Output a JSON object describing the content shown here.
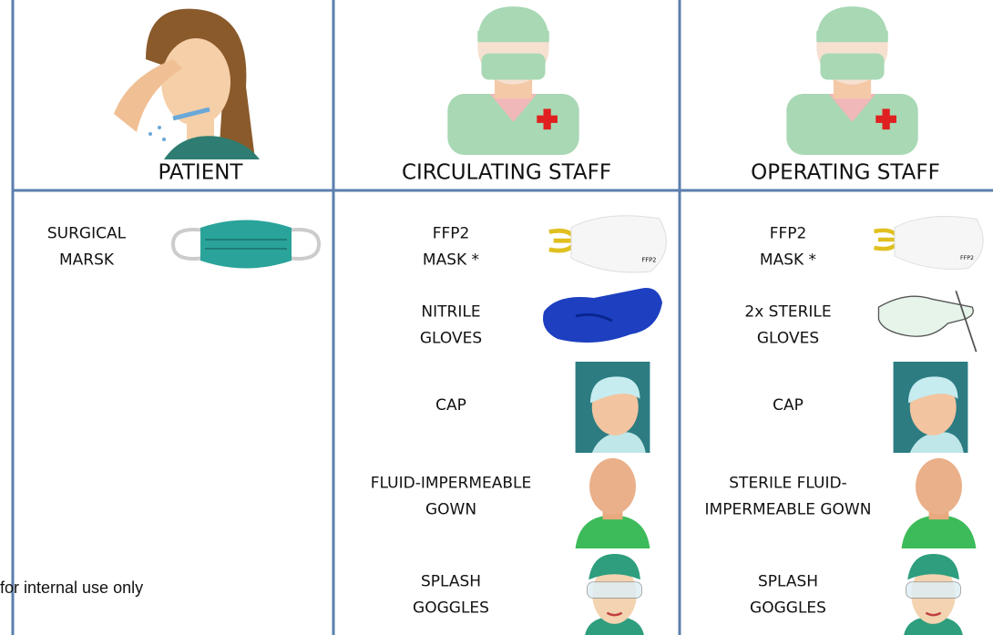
{
  "columns": [
    {
      "header": "PATIENT",
      "items": [
        {
          "label": [
            "SURGICAL",
            "MARSK"
          ]
        }
      ]
    },
    {
      "header": "CIRCULATING STAFF",
      "items": [
        {
          "label": [
            "FFP2",
            "MASK *"
          ]
        },
        {
          "label": [
            "NITRILE",
            "GLOVES"
          ]
        },
        {
          "label": [
            "CAP"
          ]
        },
        {
          "label": [
            "FLUID-IMPERMEABLE",
            "GOWN"
          ]
        },
        {
          "label": [
            "SPLASH",
            "GOGGLES"
          ]
        }
      ]
    },
    {
      "header": "OPERATING STAFF",
      "items": [
        {
          "label": [
            "FFP2",
            "MASK *"
          ]
        },
        {
          "label": [
            "2x STERILE",
            "GLOVES"
          ]
        },
        {
          "label": [
            "CAP"
          ]
        },
        {
          "label": [
            "STERILE FLUID-",
            "IMPERMEABLE GOWN"
          ]
        },
        {
          "label": [
            "SPLASH",
            "GOGGLES"
          ]
        }
      ]
    }
  ],
  "watermark": "for internal use only"
}
